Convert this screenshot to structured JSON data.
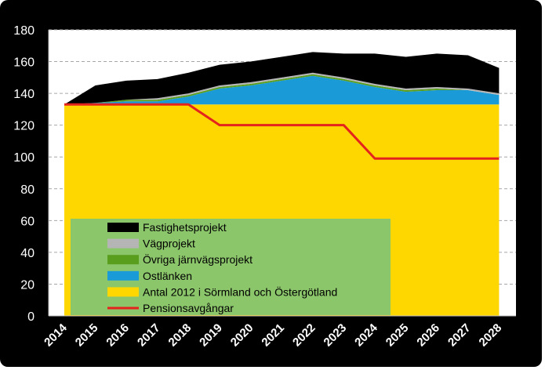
{
  "colors": {
    "frame": "#000000",
    "plot_bg": "#ffffff",
    "grid": "#a6a6a6",
    "legend_bg": "#8cc66b",
    "axis_text": "#ffffff",
    "legend_text": "#000000"
  },
  "chart_data": {
    "type": "area",
    "stacked": true,
    "title": "",
    "xlabel": "",
    "ylabel": "",
    "x": [
      2014,
      2015,
      2016,
      2017,
      2018,
      2019,
      2020,
      2021,
      2022,
      2023,
      2024,
      2025,
      2026,
      2027,
      2028
    ],
    "x_tick_labels": [
      "2014",
      "2015",
      "2016",
      "2017",
      "2018",
      "2019",
      "2020",
      "2021",
      "2022",
      "2023",
      "2024",
      "2025",
      "2026",
      "2027",
      "2028"
    ],
    "ylim": [
      0,
      180
    ],
    "y_ticks": [
      0,
      20,
      40,
      60,
      80,
      100,
      120,
      140,
      160,
      180
    ],
    "grid": "horizontal dashed",
    "legend_position": "inside lower-left",
    "series": [
      {
        "name": "Antal 2012 i Sörmland och Östergötland",
        "kind": "area",
        "color": "#ffd700",
        "values": [
          133,
          133,
          133,
          133,
          133,
          133,
          133,
          133,
          133,
          133,
          133,
          133,
          133,
          133,
          133
        ]
      },
      {
        "name": "Ostlänken",
        "kind": "area",
        "color": "#1a9bd7",
        "values": [
          0,
          1,
          2,
          2,
          5,
          10,
          12,
          15,
          18,
          15,
          11,
          8,
          9,
          9,
          6
        ]
      },
      {
        "name": "Övriga järnvägsprojekt",
        "kind": "area",
        "color": "#5a9e1e",
        "values": [
          0,
          0,
          1,
          1,
          1,
          1,
          1,
          1,
          1,
          1,
          1,
          1,
          1,
          0,
          0
        ]
      },
      {
        "name": "Vägprojekt",
        "kind": "area",
        "color": "#b5b5b5",
        "values": [
          0,
          0,
          0,
          1,
          1,
          1,
          1,
          1,
          1,
          1,
          1,
          1,
          1,
          1,
          1
        ]
      },
      {
        "name": "Fastighetsprojekt",
        "kind": "area",
        "color": "#000000",
        "values": [
          0,
          11,
          12,
          12,
          13,
          13,
          13,
          13,
          13,
          15,
          19,
          20,
          21,
          21,
          16
        ]
      },
      {
        "name": "Pensionsavgångar",
        "kind": "line",
        "color": "#e3231c",
        "values": [
          133,
          133,
          133,
          133,
          133,
          120,
          120,
          120,
          120,
          120,
          99,
          99,
          99,
          99,
          99
        ]
      }
    ],
    "legend_order": [
      "Fastighetsprojekt",
      "Vägprojekt",
      "Övriga järnvägsprojekt",
      "Ostlänken",
      "Antal 2012 i Sörmland och Östergötland",
      "Pensionsavgångar"
    ]
  }
}
